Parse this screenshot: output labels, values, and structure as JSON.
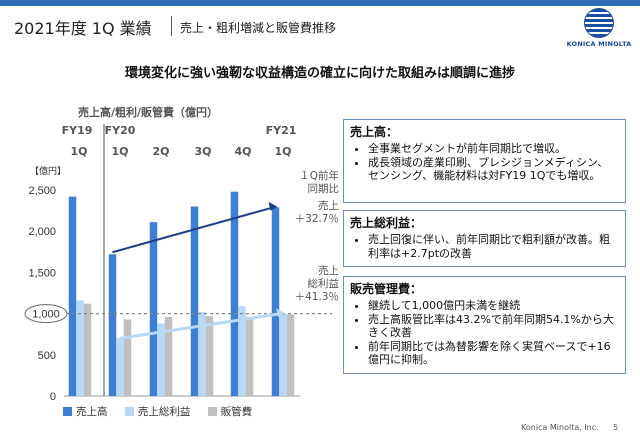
{
  "header": {
    "main": "2021年度 1Q 業績",
    "sub": "売上・粗利増減と販管費推移"
  },
  "logo": {
    "wordmark": "KONICA MINOLTA",
    "color": "#1b4fa3"
  },
  "headline": "環境変化に強い強靭な収益構造の確立に向けた取組みは順調に進捗",
  "chart_data": {
    "type": "bar",
    "title": "売上高/粗利/販管費（億円）",
    "unit_label": "【億円】",
    "periods": [
      {
        "fy": "FY19",
        "q": "1Q"
      },
      {
        "fy": "FY20",
        "q": "1Q"
      },
      {
        "fy": "",
        "q": "2Q"
      },
      {
        "fy": "",
        "q": "3Q"
      },
      {
        "fy": "",
        "q": "4Q"
      },
      {
        "fy": "FY21",
        "q": "1Q"
      }
    ],
    "yticks": [
      "0",
      "500",
      "1,000",
      "1,500",
      "2,000",
      "2,500"
    ],
    "ylim": [
      0,
      2600
    ],
    "reference_line": 1000,
    "reference_label": "1,000",
    "series": [
      {
        "name": "売上高",
        "color": "#3d7fd2",
        "values": [
          2420,
          1720,
          2110,
          2300,
          2480,
          2290
        ]
      },
      {
        "name": "売上総利益",
        "color": "#b8d8f5",
        "values": [
          1160,
          700,
          880,
          1020,
          1090,
          1000
        ]
      },
      {
        "name": "販管費",
        "color": "#bfbfbf",
        "values": [
          1120,
          930,
          960,
          970,
          960,
          990
        ]
      }
    ],
    "annotations": {
      "yoy_label": "１Q前年\n同期比",
      "sales_label": "売上\n＋32.7％",
      "gp_label": "売上\n総利益\n＋41.3％"
    }
  },
  "boxes": [
    {
      "title": "売上高：",
      "items": [
        "全事業セグメントが前年同期比で増収。",
        "成長領域の産業印刷、プレシジョンメディシン、センシング、機能材料は対FY19 1Qでも増収。"
      ]
    },
    {
      "title": "売上総利益：",
      "items": [
        "売上回復に伴い、前年同期比で粗利額が改善。粗利率は+2.7ptの改善"
      ]
    },
    {
      "title": "販売管理費：",
      "items": [
        "継続して1,000億円未満を継続",
        "売上高販管比率は43.2%で前年同期54.1%から大きく改善",
        "前年同期比では為替影響を除く実質ベースで+16億円に抑制。"
      ]
    }
  ],
  "footer": {
    "company": "Konica Minolta, Inc.",
    "page": "5"
  }
}
